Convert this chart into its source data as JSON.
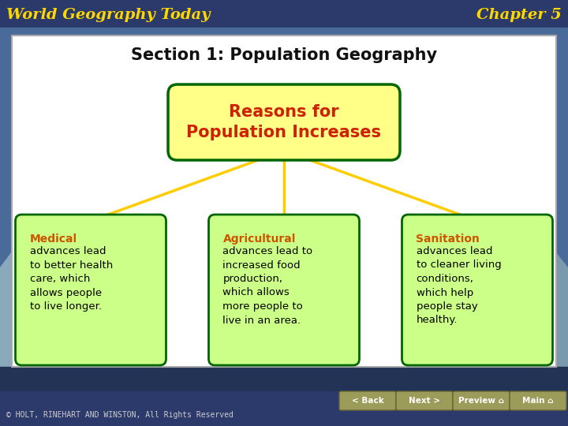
{
  "title_left": "World Geography Today",
  "title_right": "Chapter 5",
  "section_title": "Section 1: Population Geography",
  "main_box_bg": "#FFFF88",
  "main_box_border": "#006600",
  "main_box_text_color": "#CC2200",
  "main_box_line1": "Reasons for",
  "main_box_line2": "Population Increases",
  "sub_boxes": [
    {
      "heading": "Medical",
      "body": "advances lead\nto better health\ncare, which\nallows people\nto live longer.",
      "bg": "#CCFF88",
      "border": "#006600",
      "heading_color": "#CC5500",
      "body_color": "#000000"
    },
    {
      "heading": "Agricultural",
      "body": "advances lead to\nincreased food\nproduction,\nwhich allows\nmore people to\nlive in an area.",
      "bg": "#CCFF88",
      "border": "#006600",
      "heading_color": "#CC5500",
      "body_color": "#000000"
    },
    {
      "heading": "Sanitation",
      "body": "advances lead\nto cleaner living\nconditions,\nwhich help\npeople stay\nhealthy.",
      "bg": "#CCFF88",
      "border": "#006600",
      "heading_color": "#CC5500",
      "body_color": "#000000"
    }
  ],
  "connector_color": "#FFCC00",
  "header_bg": "#2B3A6B",
  "header_text_color": "#FFD700",
  "white_panel_bg": "#FFFFFF",
  "panel_border": "#AAAAAA",
  "footer_text": "© HOLT, RINEHART AND WINSTON, All Rights Reserved",
  "footer_text_color": "#CCCCCC",
  "nav_buttons": [
    "< Back",
    "Next >",
    "Preview ⌂",
    "Main ⌂"
  ],
  "nav_btn_bg": "#9B9B5A",
  "nav_btn_border": "#666633",
  "nav_btn_text": "#FFFFFF",
  "mountain_sky": "#1A3A6A",
  "mountain_snow": "#C8D8E8",
  "mountain_rock": "#5A6A7A"
}
